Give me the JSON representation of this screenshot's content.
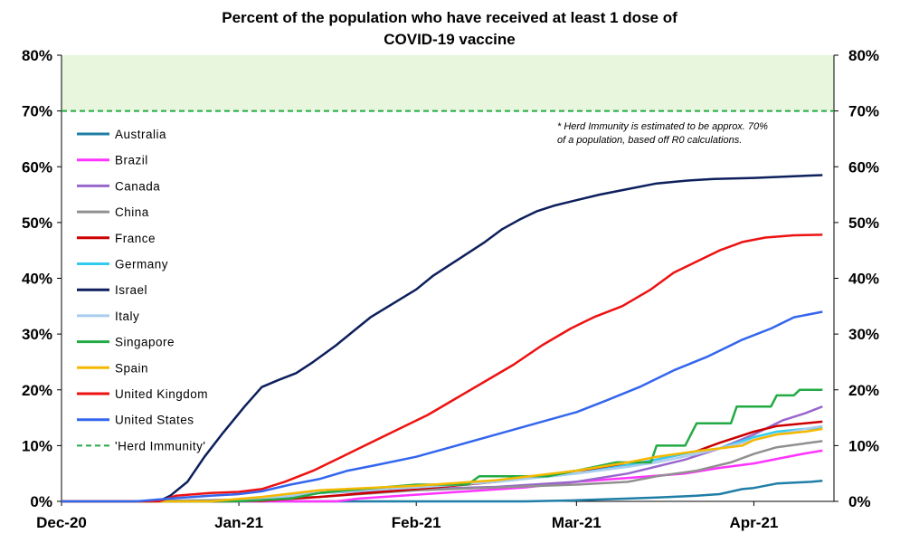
{
  "chart_data": {
    "type": "line",
    "title": [
      "Percent of the population who have received at least 1 dose of",
      "COVID-19 vaccine"
    ],
    "x_start": "2020-12-01",
    "x_end": "2021-04-15",
    "x_tick_labels": [
      {
        "date": "2020-12-01",
        "label": "Dec-20"
      },
      {
        "date": "2021-01-01",
        "label": "Jan-21"
      },
      {
        "date": "2021-02-01",
        "label": "Feb-21"
      },
      {
        "date": "2021-03-01",
        "label": "Mar-21"
      },
      {
        "date": "2021-04-01",
        "label": "Apr-21"
      }
    ],
    "y_ticks": [
      "0%",
      "10%",
      "20%",
      "30%",
      "40%",
      "50%",
      "60%",
      "70%",
      "80%"
    ],
    "ylim": [
      0,
      80
    ],
    "shaded_band": {
      "from": 70,
      "to": 80,
      "color": "#e8f6de"
    },
    "annotation": [
      "* Herd Immunity is estimated to be approx. 70%",
      "of a population, based off R0 calculations."
    ],
    "legend_position": "left",
    "series": [
      {
        "name": "Australia",
        "color": "#1f7ea6",
        "dash": false,
        "points": [
          [
            "2020-12-01",
            0
          ],
          [
            "2021-02-20",
            0
          ],
          [
            "2021-03-01",
            0.2
          ],
          [
            "2021-03-10",
            0.5
          ],
          [
            "2021-03-15",
            0.7
          ],
          [
            "2021-03-22",
            1.0
          ],
          [
            "2021-03-26",
            1.3
          ],
          [
            "2021-03-30",
            2.2
          ],
          [
            "2021-04-01",
            2.4
          ],
          [
            "2021-04-05",
            3.2
          ],
          [
            "2021-04-09",
            3.4
          ],
          [
            "2021-04-11",
            3.5
          ],
          [
            "2021-04-13",
            3.7
          ]
        ]
      },
      {
        "name": "Brazil",
        "color": "#ff33ff",
        "dash": false,
        "points": [
          [
            "2020-12-01",
            0
          ],
          [
            "2021-01-18",
            0
          ],
          [
            "2021-01-22",
            0.5
          ],
          [
            "2021-02-01",
            1.2
          ],
          [
            "2021-02-10",
            1.8
          ],
          [
            "2021-02-20",
            2.5
          ],
          [
            "2021-03-01",
            3.5
          ],
          [
            "2021-03-10",
            4.2
          ],
          [
            "2021-03-20",
            5.0
          ],
          [
            "2021-03-26",
            6.0
          ],
          [
            "2021-04-01",
            6.8
          ],
          [
            "2021-04-06",
            7.8
          ],
          [
            "2021-04-10",
            8.6
          ],
          [
            "2021-04-13",
            9.1
          ]
        ]
      },
      {
        "name": "Canada",
        "color": "#9966cc",
        "dash": false,
        "points": [
          [
            "2020-12-01",
            0
          ],
          [
            "2020-12-15",
            0.05
          ],
          [
            "2021-01-01",
            0.3
          ],
          [
            "2021-01-15",
            1.5
          ],
          [
            "2021-02-01",
            2.2
          ],
          [
            "2021-02-15",
            2.6
          ],
          [
            "2021-03-01",
            3.5
          ],
          [
            "2021-03-10",
            5.0
          ],
          [
            "2021-03-20",
            7.5
          ],
          [
            "2021-03-26",
            9.5
          ],
          [
            "2021-04-01",
            12.0
          ],
          [
            "2021-04-06",
            14.5
          ],
          [
            "2021-04-10",
            15.8
          ],
          [
            "2021-04-13",
            17.0
          ]
        ]
      },
      {
        "name": "China",
        "color": "#909090",
        "dash": false,
        "points": [
          [
            "2020-12-01",
            0
          ],
          [
            "2020-12-15",
            0
          ],
          [
            "2021-01-01",
            0.3
          ],
          [
            "2021-01-15",
            0.8
          ],
          [
            "2021-02-01",
            2.0
          ],
          [
            "2021-02-15",
            2.5
          ],
          [
            "2021-03-01",
            3.0
          ],
          [
            "2021-03-10",
            3.5
          ],
          [
            "2021-03-15",
            4.5
          ],
          [
            "2021-03-22",
            5.5
          ],
          [
            "2021-03-28",
            7.0
          ],
          [
            "2021-04-01",
            8.5
          ],
          [
            "2021-04-05",
            9.7
          ],
          [
            "2021-04-10",
            10.4
          ],
          [
            "2021-04-13",
            10.8
          ]
        ]
      },
      {
        "name": "France",
        "color": "#cc0000",
        "dash": false,
        "points": [
          [
            "2020-12-01",
            0
          ],
          [
            "2020-12-27",
            0
          ],
          [
            "2021-01-05",
            0.1
          ],
          [
            "2021-01-15",
            0.8
          ],
          [
            "2021-02-01",
            2.2
          ],
          [
            "2021-02-15",
            3.5
          ],
          [
            "2021-03-01",
            5.5
          ],
          [
            "2021-03-10",
            6.5
          ],
          [
            "2021-03-15",
            7.5
          ],
          [
            "2021-03-22",
            9.0
          ],
          [
            "2021-03-26",
            10.5
          ],
          [
            "2021-04-01",
            12.5
          ],
          [
            "2021-04-05",
            13.5
          ],
          [
            "2021-04-10",
            14.0
          ],
          [
            "2021-04-13",
            14.3
          ]
        ]
      },
      {
        "name": "Germany",
        "color": "#33ccee",
        "dash": false,
        "points": [
          [
            "2020-12-01",
            0
          ],
          [
            "2020-12-27",
            0
          ],
          [
            "2021-01-05",
            0.5
          ],
          [
            "2021-01-15",
            1.5
          ],
          [
            "2021-02-01",
            2.5
          ],
          [
            "2021-02-15",
            3.5
          ],
          [
            "2021-03-01",
            5.0
          ],
          [
            "2021-03-10",
            6.5
          ],
          [
            "2021-03-15",
            7.5
          ],
          [
            "2021-03-22",
            9.0
          ],
          [
            "2021-03-26",
            9.5
          ],
          [
            "2021-04-01",
            11.5
          ],
          [
            "2021-04-05",
            12.5
          ],
          [
            "2021-04-10",
            13.0
          ],
          [
            "2021-04-13",
            13.2
          ]
        ]
      },
      {
        "name": "Israel",
        "color": "#0d1f5c",
        "dash": false,
        "points": [
          [
            "2020-12-01",
            0
          ],
          [
            "2020-12-18",
            0
          ],
          [
            "2020-12-20",
            1.0
          ],
          [
            "2020-12-23",
            3.5
          ],
          [
            "2020-12-26",
            8.0
          ],
          [
            "2020-12-29",
            12.0
          ],
          [
            "2021-01-02",
            17.0
          ],
          [
            "2021-01-05",
            20.5
          ],
          [
            "2021-01-08",
            21.8
          ],
          [
            "2021-01-11",
            23.0
          ],
          [
            "2021-01-14",
            25.0
          ],
          [
            "2021-01-18",
            28.0
          ],
          [
            "2021-01-21",
            30.5
          ],
          [
            "2021-01-24",
            33.0
          ],
          [
            "2021-01-28",
            35.5
          ],
          [
            "2021-02-01",
            38.0
          ],
          [
            "2021-02-04",
            40.5
          ],
          [
            "2021-02-07",
            42.5
          ],
          [
            "2021-02-10",
            44.5
          ],
          [
            "2021-02-13",
            46.5
          ],
          [
            "2021-02-16",
            48.8
          ],
          [
            "2021-02-19",
            50.5
          ],
          [
            "2021-02-22",
            52.0
          ],
          [
            "2021-02-25",
            53.0
          ],
          [
            "2021-03-01",
            54.0
          ],
          [
            "2021-03-05",
            55.0
          ],
          [
            "2021-03-10",
            56.0
          ],
          [
            "2021-03-15",
            57.0
          ],
          [
            "2021-03-20",
            57.5
          ],
          [
            "2021-03-25",
            57.8
          ],
          [
            "2021-04-01",
            58.0
          ],
          [
            "2021-04-08",
            58.3
          ],
          [
            "2021-04-13",
            58.5
          ]
        ]
      },
      {
        "name": "Italy",
        "color": "#aaccee",
        "dash": false,
        "points": [
          [
            "2020-12-01",
            0
          ],
          [
            "2020-12-27",
            0
          ],
          [
            "2021-01-05",
            0.5
          ],
          [
            "2021-01-15",
            1.5
          ],
          [
            "2021-02-01",
            2.5
          ],
          [
            "2021-02-15",
            3.5
          ],
          [
            "2021-03-01",
            5.0
          ],
          [
            "2021-03-10",
            6.2
          ],
          [
            "2021-03-15",
            7.0
          ],
          [
            "2021-03-22",
            8.5
          ],
          [
            "2021-03-26",
            9.5
          ],
          [
            "2021-04-01",
            11.0
          ],
          [
            "2021-04-05",
            12.0
          ],
          [
            "2021-04-10",
            13.0
          ],
          [
            "2021-04-13",
            13.5
          ]
        ]
      },
      {
        "name": "Singapore",
        "color": "#22aa44",
        "dash": false,
        "points": [
          [
            "2020-12-01",
            0
          ],
          [
            "2021-01-01",
            0
          ],
          [
            "2021-01-10",
            0.5
          ],
          [
            "2021-01-15",
            1.5
          ],
          [
            "2021-01-20",
            2.0
          ],
          [
            "2021-02-01",
            3.0
          ],
          [
            "2021-02-10",
            3.0
          ],
          [
            "2021-02-12",
            4.5
          ],
          [
            "2021-02-24",
            4.5
          ],
          [
            "2021-03-01",
            5.5
          ],
          [
            "2021-03-08",
            7.0
          ],
          [
            "2021-03-14",
            7.0
          ],
          [
            "2021-03-15",
            10.0
          ],
          [
            "2021-03-20",
            10.0
          ],
          [
            "2021-03-22",
            14.0
          ],
          [
            "2021-03-28",
            14.0
          ],
          [
            "2021-03-29",
            17.0
          ],
          [
            "2021-04-04",
            17.0
          ],
          [
            "2021-04-05",
            19.0
          ],
          [
            "2021-04-08",
            19.0
          ],
          [
            "2021-04-09",
            20.0
          ],
          [
            "2021-04-13",
            20.0
          ]
        ]
      },
      {
        "name": "Spain",
        "color": "#f5b800",
        "dash": false,
        "points": [
          [
            "2020-12-01",
            0
          ],
          [
            "2020-12-27",
            0
          ],
          [
            "2021-01-05",
            0.8
          ],
          [
            "2021-01-15",
            2.0
          ],
          [
            "2021-02-01",
            2.8
          ],
          [
            "2021-02-15",
            3.8
          ],
          [
            "2021-03-01",
            5.5
          ],
          [
            "2021-03-10",
            7.0
          ],
          [
            "2021-03-15",
            8.0
          ],
          [
            "2021-03-22",
            9.0
          ],
          [
            "2021-03-26",
            9.5
          ],
          [
            "2021-03-30",
            10.0
          ],
          [
            "2021-04-01",
            11.0
          ],
          [
            "2021-04-05",
            12.0
          ],
          [
            "2021-04-10",
            12.5
          ],
          [
            "2021-04-13",
            13.0
          ]
        ]
      },
      {
        "name": "United Kingdom",
        "color": "#ee1111",
        "dash": false,
        "points": [
          [
            "2020-12-01",
            0
          ],
          [
            "2020-12-18",
            0
          ],
          [
            "2020-12-21",
            1.0
          ],
          [
            "2020-12-27",
            1.5
          ],
          [
            "2021-01-01",
            1.7
          ],
          [
            "2021-01-05",
            2.2
          ],
          [
            "2021-01-09",
            3.5
          ],
          [
            "2021-01-14",
            5.5
          ],
          [
            "2021-01-19",
            8.0
          ],
          [
            "2021-01-24",
            10.5
          ],
          [
            "2021-01-29",
            13.0
          ],
          [
            "2021-02-03",
            15.5
          ],
          [
            "2021-02-08",
            18.5
          ],
          [
            "2021-02-13",
            21.5
          ],
          [
            "2021-02-18",
            24.5
          ],
          [
            "2021-02-23",
            28.0
          ],
          [
            "2021-02-28",
            31.0
          ],
          [
            "2021-03-04",
            33.0
          ],
          [
            "2021-03-09",
            35.0
          ],
          [
            "2021-03-14",
            38.0
          ],
          [
            "2021-03-18",
            41.0
          ],
          [
            "2021-03-22",
            43.0
          ],
          [
            "2021-03-26",
            45.0
          ],
          [
            "2021-03-30",
            46.5
          ],
          [
            "2021-04-03",
            47.3
          ],
          [
            "2021-04-08",
            47.7
          ],
          [
            "2021-04-13",
            47.8
          ]
        ]
      },
      {
        "name": "United States",
        "color": "#3366ee",
        "dash": false,
        "points": [
          [
            "2020-12-01",
            0
          ],
          [
            "2020-12-14",
            0
          ],
          [
            "2020-12-20",
            0.5
          ],
          [
            "2020-12-27",
            1.0
          ],
          [
            "2021-01-01",
            1.3
          ],
          [
            "2021-01-05",
            1.8
          ],
          [
            "2021-01-10",
            3.0
          ],
          [
            "2021-01-15",
            4.0
          ],
          [
            "2021-01-20",
            5.5
          ],
          [
            "2021-01-25",
            6.5
          ],
          [
            "2021-02-01",
            8.0
          ],
          [
            "2021-02-08",
            10.0
          ],
          [
            "2021-02-15",
            12.0
          ],
          [
            "2021-02-22",
            14.0
          ],
          [
            "2021-03-01",
            16.0
          ],
          [
            "2021-03-06",
            18.0
          ],
          [
            "2021-03-12",
            20.5
          ],
          [
            "2021-03-18",
            23.5
          ],
          [
            "2021-03-24",
            26.0
          ],
          [
            "2021-03-30",
            29.0
          ],
          [
            "2021-04-04",
            31.0
          ],
          [
            "2021-04-08",
            33.0
          ],
          [
            "2021-04-13",
            34.0
          ]
        ]
      },
      {
        "name": "'Herd Immunity'",
        "color": "#22aa44",
        "dash": true,
        "points": [
          [
            "2020-12-01",
            70
          ],
          [
            "2021-04-15",
            70
          ]
        ]
      }
    ]
  }
}
